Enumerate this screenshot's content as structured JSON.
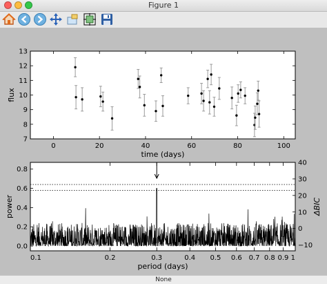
{
  "window": {
    "title": "Figure 1"
  },
  "toolbar": {
    "buttons": [
      {
        "name": "home-button",
        "icon": "home-icon",
        "color": "#e06b1b"
      },
      {
        "name": "back-button",
        "icon": "left-arrow-icon",
        "color": "#4c9ad1"
      },
      {
        "name": "forward-button",
        "icon": "right-arrow-icon",
        "color": "#4c9ad1"
      },
      {
        "name": "pan-button",
        "icon": "move-arrows-icon",
        "color": "#2b63b8"
      },
      {
        "name": "zoom-button",
        "icon": "zoom-rect-icon",
        "color": "#e6b84a"
      },
      {
        "name": "subplots-button",
        "icon": "subplots-icon",
        "color": "#3d8a3d"
      },
      {
        "name": "save-button",
        "icon": "floppy-disk-icon",
        "color": "#2f5fa3"
      }
    ]
  },
  "status": {
    "text": "None"
  },
  "chart_data": [
    {
      "type": "scatter",
      "xlabel": "time (days)",
      "ylabel": "flux",
      "xlim": [
        -10,
        105
      ],
      "ylim": [
        7,
        13
      ],
      "xticks": [
        "0",
        "20",
        "40",
        "60",
        "80",
        "100"
      ],
      "yticks": [
        "7",
        "8",
        "9",
        "10",
        "11",
        "12",
        "13"
      ],
      "error_bars": true,
      "points": [
        {
          "x": 9.5,
          "y": 11.9,
          "err": 0.65
        },
        {
          "x": 9.8,
          "y": 9.85,
          "err": 0.8
        },
        {
          "x": 12.5,
          "y": 9.7,
          "err": 0.8
        },
        {
          "x": 20.5,
          "y": 9.9,
          "err": 0.7
        },
        {
          "x": 21.5,
          "y": 9.55,
          "err": 0.65
        },
        {
          "x": 25.5,
          "y": 8.4,
          "err": 0.8
        },
        {
          "x": 36.8,
          "y": 11.1,
          "err": 0.65
        },
        {
          "x": 37.5,
          "y": 10.55,
          "err": 0.75
        },
        {
          "x": 39.5,
          "y": 9.3,
          "err": 0.75
        },
        {
          "x": 44.5,
          "y": 8.9,
          "err": 0.7
        },
        {
          "x": 46.8,
          "y": 11.35,
          "err": 0.5
        },
        {
          "x": 47.5,
          "y": 9.25,
          "err": 0.7
        },
        {
          "x": 58.5,
          "y": 9.95,
          "err": 0.55
        },
        {
          "x": 64.3,
          "y": 10.1,
          "err": 0.7
        },
        {
          "x": 65.2,
          "y": 9.6,
          "err": 0.7
        },
        {
          "x": 67.0,
          "y": 11.1,
          "err": 0.6
        },
        {
          "x": 67.8,
          "y": 9.5,
          "err": 0.8
        },
        {
          "x": 68.5,
          "y": 11.4,
          "err": 0.7
        },
        {
          "x": 69.8,
          "y": 9.2,
          "err": 0.65
        },
        {
          "x": 72.0,
          "y": 10.45,
          "err": 0.75
        },
        {
          "x": 77.5,
          "y": 9.8,
          "err": 0.75
        },
        {
          "x": 79.5,
          "y": 8.6,
          "err": 0.7
        },
        {
          "x": 80.2,
          "y": 10.1,
          "err": 0.6
        },
        {
          "x": 81.3,
          "y": 10.35,
          "err": 0.55
        },
        {
          "x": 83.2,
          "y": 9.95,
          "err": 0.55
        },
        {
          "x": 87.3,
          "y": 7.95,
          "err": 0.8
        },
        {
          "x": 87.6,
          "y": 8.45,
          "err": 0.8
        },
        {
          "x": 88.5,
          "y": 9.4,
          "err": 0.75
        },
        {
          "x": 88.9,
          "y": 10.3,
          "err": 0.65
        },
        {
          "x": 89.3,
          "y": 8.7,
          "err": 0.9
        }
      ]
    },
    {
      "type": "line",
      "xlabel": "period (days)",
      "ylabel": "power",
      "ylabel_right": "ΔBIC",
      "xscale": "log",
      "xlim": [
        0.1,
        1
      ],
      "ylim": [
        -0.05,
        0.87
      ],
      "ylim_right": [
        -13.5,
        40
      ],
      "xticks": [
        "0.1",
        "0.2",
        "0.3",
        "0.4",
        "0.5",
        "0.6",
        "0.7",
        "0.8",
        "0.9",
        "1"
      ],
      "yticks": [
        "0.0",
        "0.2",
        "0.4",
        "0.6",
        "0.8"
      ],
      "yticks_right": [
        "−10",
        "0",
        "10",
        "20",
        "30",
        "40"
      ],
      "peak_period": 0.3,
      "peak_power": 0.6,
      "threshold_lines": [
        0.64,
        0.58
      ],
      "arrow_at_period": 0.3
    }
  ]
}
